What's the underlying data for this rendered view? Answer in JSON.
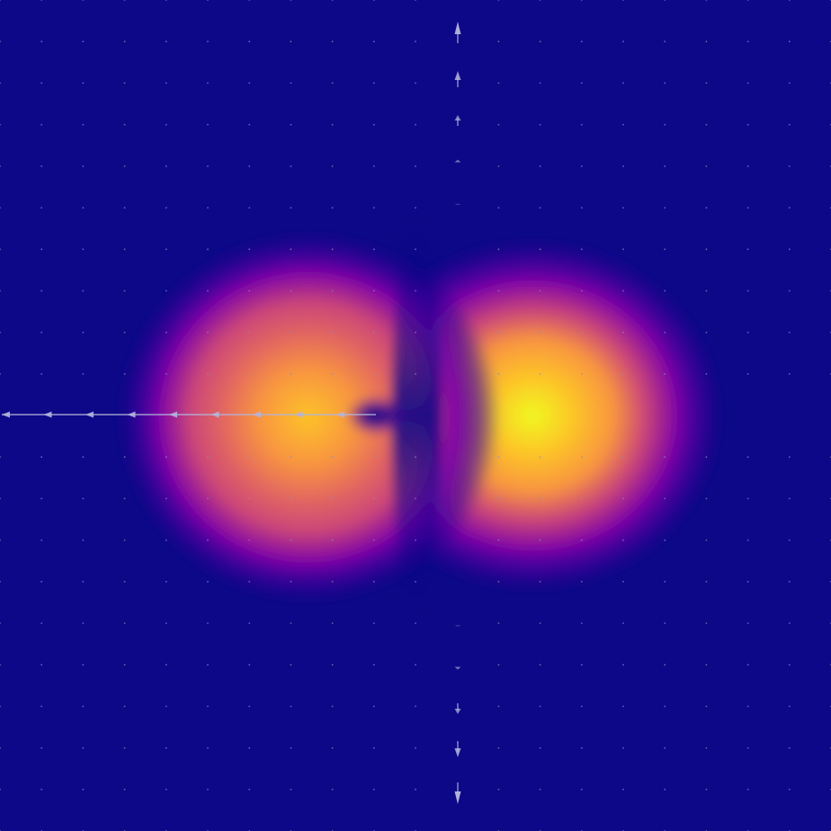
{
  "view": {
    "colormap": "plasma",
    "colors": {
      "background": "#0d0887",
      "low": "#0d0887",
      "mid_low": "#7e03a8",
      "mid": "#cc4778",
      "mid_high": "#f89540",
      "high": "#f0f921",
      "arrow": "#b4b4dc",
      "grid_dot": "#8c8cc8"
    }
  }
}
